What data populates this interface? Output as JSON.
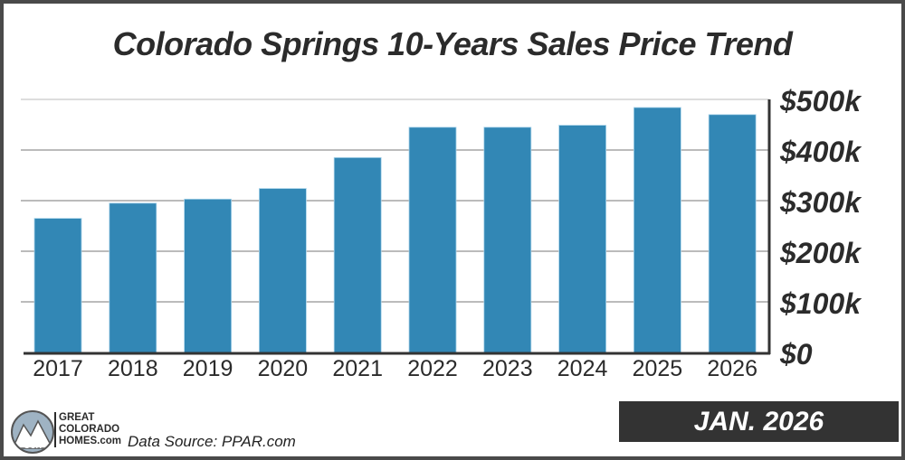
{
  "chart_data": {
    "type": "bar",
    "title": "Colorado Springs 10-Years Sales Price Trend",
    "categories": [
      "2017",
      "2018",
      "2019",
      "2020",
      "2021",
      "2022",
      "2023",
      "2024",
      "2025",
      "2026"
    ],
    "values": [
      265000,
      295000,
      303000,
      324000,
      385000,
      445000,
      445000,
      449000,
      484000,
      470000
    ],
    "ylim": [
      0,
      500000
    ],
    "yticks": [
      0,
      100000,
      200000,
      300000,
      400000,
      500000
    ],
    "ytick_labels": [
      "$0",
      "$100k",
      "$200k",
      "$300k",
      "$400k",
      "$500k"
    ],
    "y_axis_side": "right",
    "grid": true,
    "bar_color": "#3287b5"
  },
  "footer": {
    "badge": "JAN. 2026",
    "source": "Data Source: PPAR.com",
    "logo_lines": [
      "GREAT",
      "COLORADO",
      "HOMES.com"
    ],
    "logo_mark": "GCH"
  }
}
